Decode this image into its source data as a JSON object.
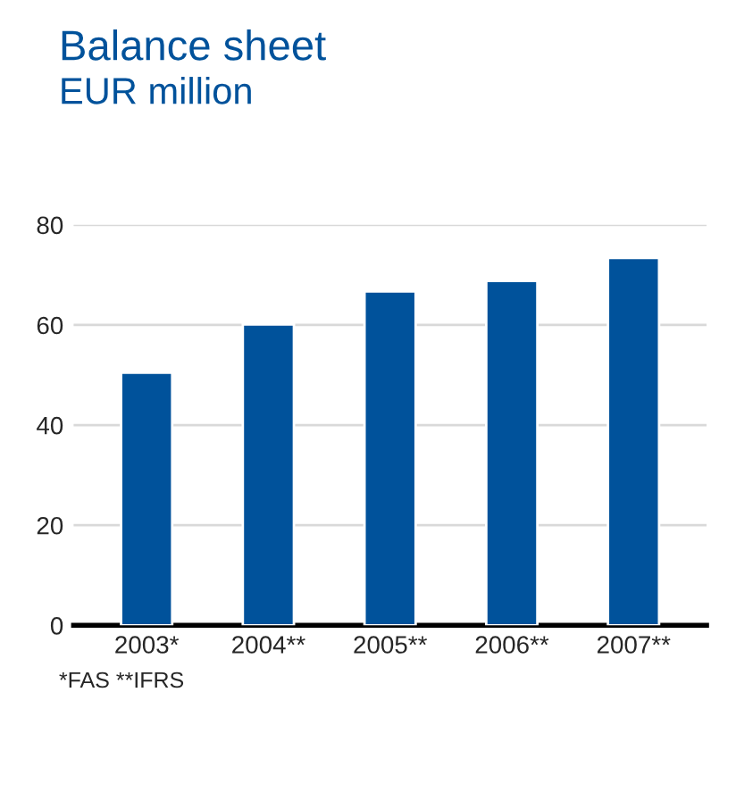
{
  "chart_data": {
    "type": "bar",
    "title": "Balance sheet",
    "subtitle": "EUR million",
    "categories": [
      "2003*",
      "2004**",
      "2005**",
      "2006**",
      "2007**"
    ],
    "values": [
      50.5,
      60.1,
      66.7,
      68.8,
      73.4
    ],
    "color": "#00529b",
    "ylim": [
      0,
      80
    ],
    "yticks": [
      0,
      20,
      40,
      60,
      80
    ],
    "grid": "y",
    "annotations": [
      "*FAS **IFRS"
    ]
  }
}
